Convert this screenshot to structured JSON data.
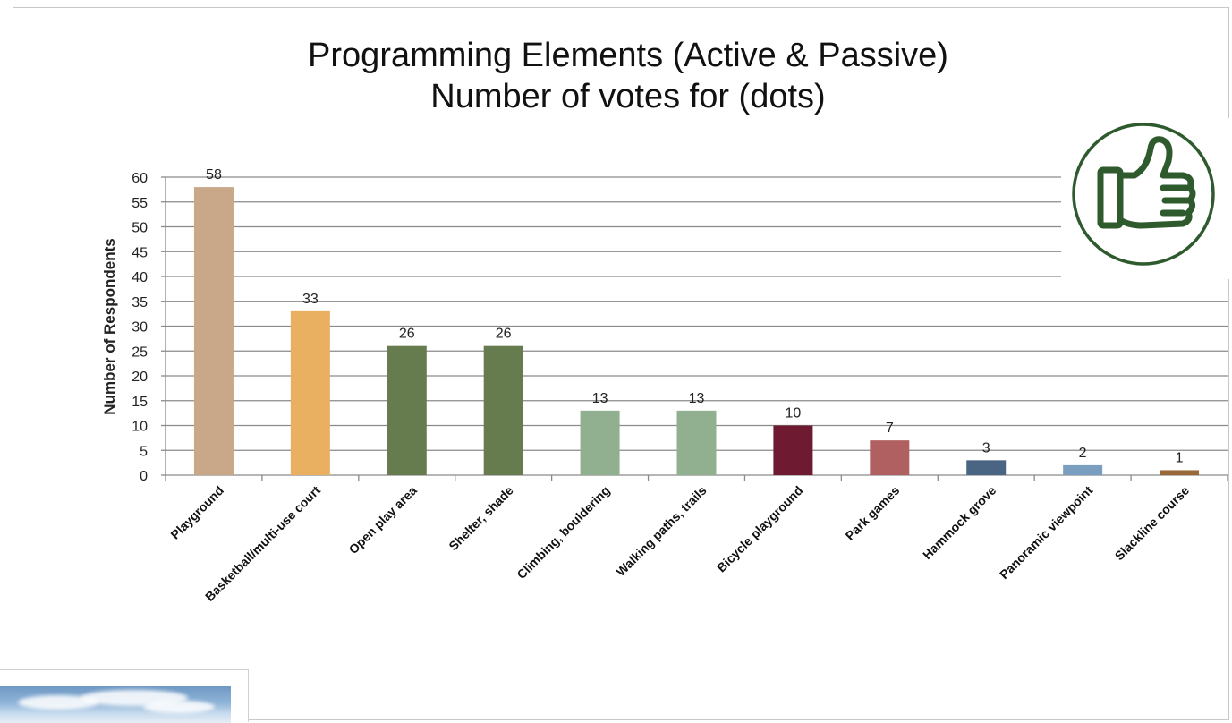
{
  "chart_data": {
    "type": "bar",
    "title": [
      "Programming Elements (Active & Passive)",
      "Number of votes for (dots)"
    ],
    "xlabel": "",
    "ylabel": "Number  of Respondents",
    "ylim": [
      0,
      60
    ],
    "yticks": [
      0,
      5,
      10,
      15,
      20,
      25,
      30,
      35,
      40,
      45,
      50,
      55,
      60
    ],
    "grid": true,
    "data_labels": true,
    "categories": [
      "Playground",
      "Basketball/multi-use court",
      "Open play area",
      "Shelter, shade",
      "Climbing, bouldering",
      "Walking paths, trails",
      "Bicycle playground",
      "Park games",
      "Hammock grove",
      "Panoramic viewpoint",
      "Slackline course"
    ],
    "values": [
      58,
      33,
      26,
      26,
      13,
      13,
      10,
      7,
      3,
      2,
      1
    ],
    "colors": [
      "#c8a888",
      "#e8b060",
      "#667b4e",
      "#667b4e",
      "#90b090",
      "#90b090",
      "#6e1a30",
      "#b06060",
      "#4a6484",
      "#7a9ec0",
      "#9a6838"
    ]
  },
  "badge": {
    "icon": "thumbs-up-icon",
    "color": "#2e5a2e"
  },
  "photo": {
    "icon": "sky-photo"
  }
}
